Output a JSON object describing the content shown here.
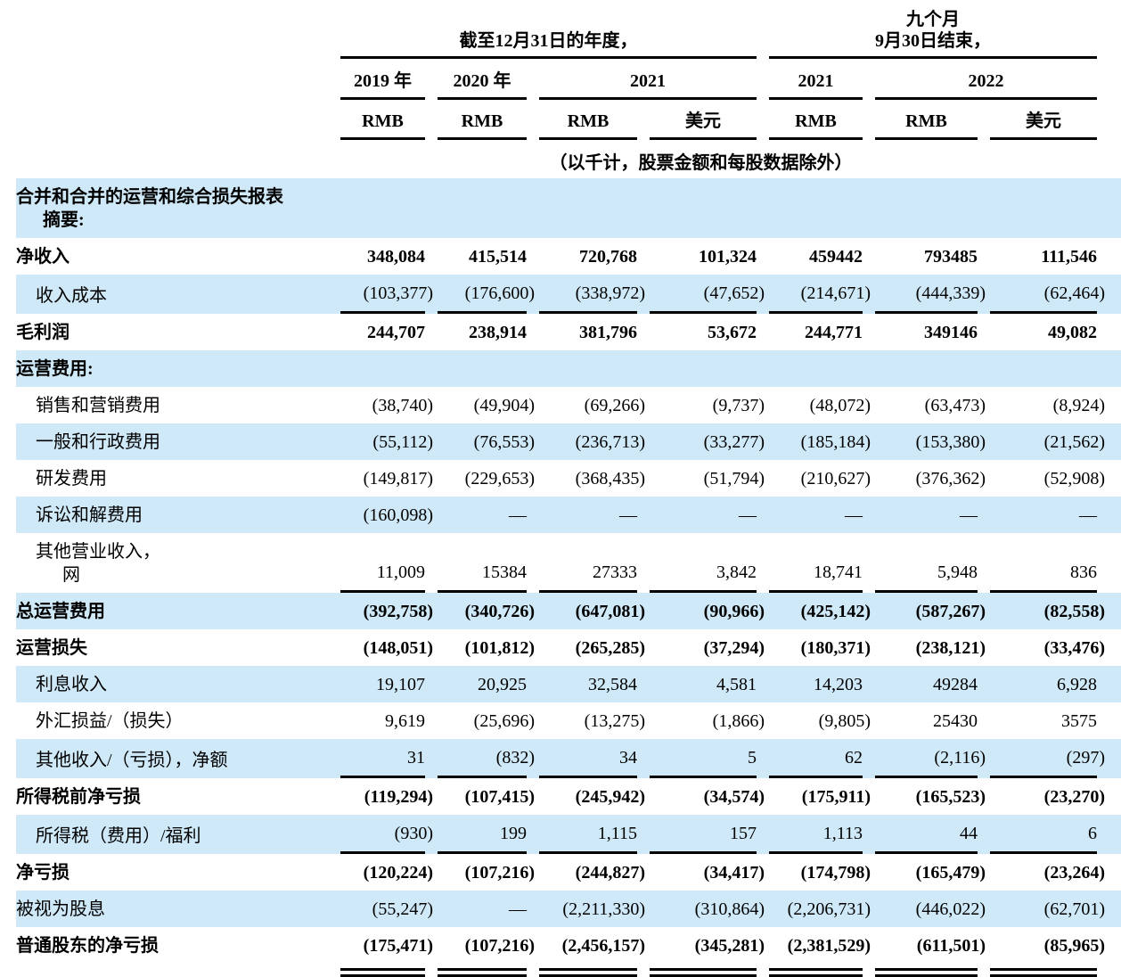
{
  "table": {
    "colors": {
      "shade": "#cfe9f8",
      "rule": "#000000",
      "text": "#000000"
    },
    "header": {
      "period_annual": "截至12月31日的年度，",
      "period_nine_line1": "九个月",
      "period_nine_line2": "9月30日结束，",
      "years": {
        "y2019": "2019 年",
        "y2020": "2020 年",
        "y2021_annual": "2021",
        "y2021_nine": "2021",
        "y2022": "2022"
      },
      "units": [
        "RMB",
        "RMB",
        "RMB",
        "美元",
        "RMB",
        "RMB",
        "美元"
      ],
      "note": "（以千计，股票金额和每股数据除外）"
    },
    "rows": [
      {
        "label": "合并和合并的运营和综合损失报表",
        "label2": "摘要:",
        "bold": true,
        "shade": true,
        "indent": false,
        "underline": false,
        "double_rule": false,
        "values": [
          "",
          "",
          "",
          "",
          "",
          "",
          ""
        ]
      },
      {
        "label": "净收入",
        "bold": true,
        "shade": false,
        "indent": false,
        "underline": false,
        "double_rule": false,
        "values": [
          "348,084",
          "415,514",
          "720,768",
          "101,324",
          "459442",
          "793485",
          "111,546"
        ]
      },
      {
        "label": "收入成本",
        "bold": false,
        "shade": true,
        "indent": true,
        "underline": true,
        "double_rule": false,
        "values": [
          "(103,377)",
          "(176,600)",
          "(338,972)",
          "(47,652)",
          "(214,671)",
          "(444,339)",
          "(62,464)"
        ]
      },
      {
        "label": "毛利润",
        "bold": true,
        "shade": false,
        "indent": false,
        "underline": false,
        "double_rule": false,
        "values": [
          "244,707",
          "238,914",
          "381,796",
          "53,672",
          "244,771",
          "349146",
          "49,082"
        ]
      },
      {
        "label": "运营费用:",
        "bold": true,
        "shade": true,
        "indent": false,
        "underline": false,
        "double_rule": false,
        "values": [
          "",
          "",
          "",
          "",
          "",
          "",
          ""
        ]
      },
      {
        "label": "销售和营销费用",
        "bold": false,
        "shade": false,
        "indent": true,
        "underline": false,
        "double_rule": false,
        "values": [
          "(38,740)",
          "(49,904)",
          "(69,266)",
          "(9,737)",
          "(48,072)",
          "(63,473)",
          "(8,924)"
        ]
      },
      {
        "label": "一般和行政费用",
        "bold": false,
        "shade": true,
        "indent": true,
        "underline": false,
        "double_rule": false,
        "values": [
          "(55,112)",
          "(76,553)",
          "(236,713)",
          "(33,277)",
          "(185,184)",
          "(153,380)",
          "(21,562)"
        ]
      },
      {
        "label": "研发费用",
        "bold": false,
        "shade": false,
        "indent": true,
        "underline": false,
        "double_rule": false,
        "values": [
          "(149,817)",
          "(229,653)",
          "(368,435)",
          "(51,794)",
          "(210,627)",
          "(376,362)",
          "(52,908)"
        ]
      },
      {
        "label": "诉讼和解费用",
        "bold": false,
        "shade": true,
        "indent": true,
        "underline": false,
        "double_rule": false,
        "values": [
          "(160,098)",
          "—",
          "—",
          "—",
          "—",
          "—",
          "—"
        ]
      },
      {
        "label": "其他营业收入，",
        "label2": "网",
        "bold": false,
        "shade": false,
        "indent": true,
        "underline": true,
        "double_rule": false,
        "values": [
          "11,009",
          "15384",
          "27333",
          "3,842",
          "18,741",
          "5,948",
          "836"
        ]
      },
      {
        "label": "总运营费用",
        "bold": true,
        "shade": true,
        "indent": false,
        "underline": false,
        "double_rule": false,
        "values": [
          "(392,758)",
          "(340,726)",
          "(647,081)",
          "(90,966)",
          "(425,142)",
          "(587,267)",
          "(82,558)"
        ]
      },
      {
        "label": "运营损失",
        "bold": true,
        "shade": false,
        "indent": false,
        "underline": false,
        "double_rule": false,
        "values": [
          "(148,051)",
          "(101,812)",
          "(265,285)",
          "(37,294)",
          "(180,371)",
          "(238,121)",
          "(33,476)"
        ]
      },
      {
        "label": "利息收入",
        "bold": false,
        "shade": true,
        "indent": true,
        "underline": false,
        "double_rule": false,
        "values": [
          "19,107",
          "20,925",
          "32,584",
          "4,581",
          "14,203",
          "49284",
          "6,928"
        ]
      },
      {
        "label": "外汇损益/（损失）",
        "bold": false,
        "shade": false,
        "indent": true,
        "underline": false,
        "double_rule": false,
        "values": [
          "9,619",
          "(25,696)",
          "(13,275)",
          "(1,866)",
          "(9,805)",
          "25430",
          "3575"
        ]
      },
      {
        "label": "其他收入/（亏损），净额",
        "bold": false,
        "shade": true,
        "indent": true,
        "underline": true,
        "double_rule": false,
        "values": [
          "31",
          "(832)",
          "34",
          "5",
          "62",
          "(2,116)",
          "(297)"
        ]
      },
      {
        "label": "所得税前净亏损",
        "bold": true,
        "shade": false,
        "indent": false,
        "underline": false,
        "double_rule": false,
        "values": [
          "(119,294)",
          "(107,415)",
          "(245,942)",
          "(34,574)",
          "(175,911)",
          "(165,523)",
          "(23,270)"
        ]
      },
      {
        "label": "所得税（费用）/福利",
        "bold": false,
        "shade": true,
        "indent": true,
        "underline": true,
        "double_rule": false,
        "values": [
          "(930)",
          "199",
          "1,115",
          "157",
          "1,113",
          "44",
          "6"
        ]
      },
      {
        "label": "净亏损",
        "bold": true,
        "shade": false,
        "indent": false,
        "underline": false,
        "double_rule": false,
        "values": [
          "(120,224)",
          "(107,216)",
          "(244,827)",
          "(34,417)",
          "(174,798)",
          "(165,479)",
          "(23,264)"
        ]
      },
      {
        "label": "被视为股息",
        "bold": false,
        "shade": true,
        "indent": false,
        "underline": false,
        "double_rule": false,
        "values": [
          "(55,247)",
          "—",
          "(2,211,330)",
          "(310,864)",
          "(2,206,731)",
          "(446,022)",
          "(62,701)"
        ]
      },
      {
        "label": "普通股东的净亏损",
        "bold": true,
        "shade": false,
        "indent": false,
        "underline": false,
        "double_rule": true,
        "values": [
          "(175,471)",
          "(107,216)",
          "(2,456,157)",
          "(345,281)",
          "(2,381,529)",
          "(611,501)",
          "(85,965)"
        ]
      }
    ]
  }
}
